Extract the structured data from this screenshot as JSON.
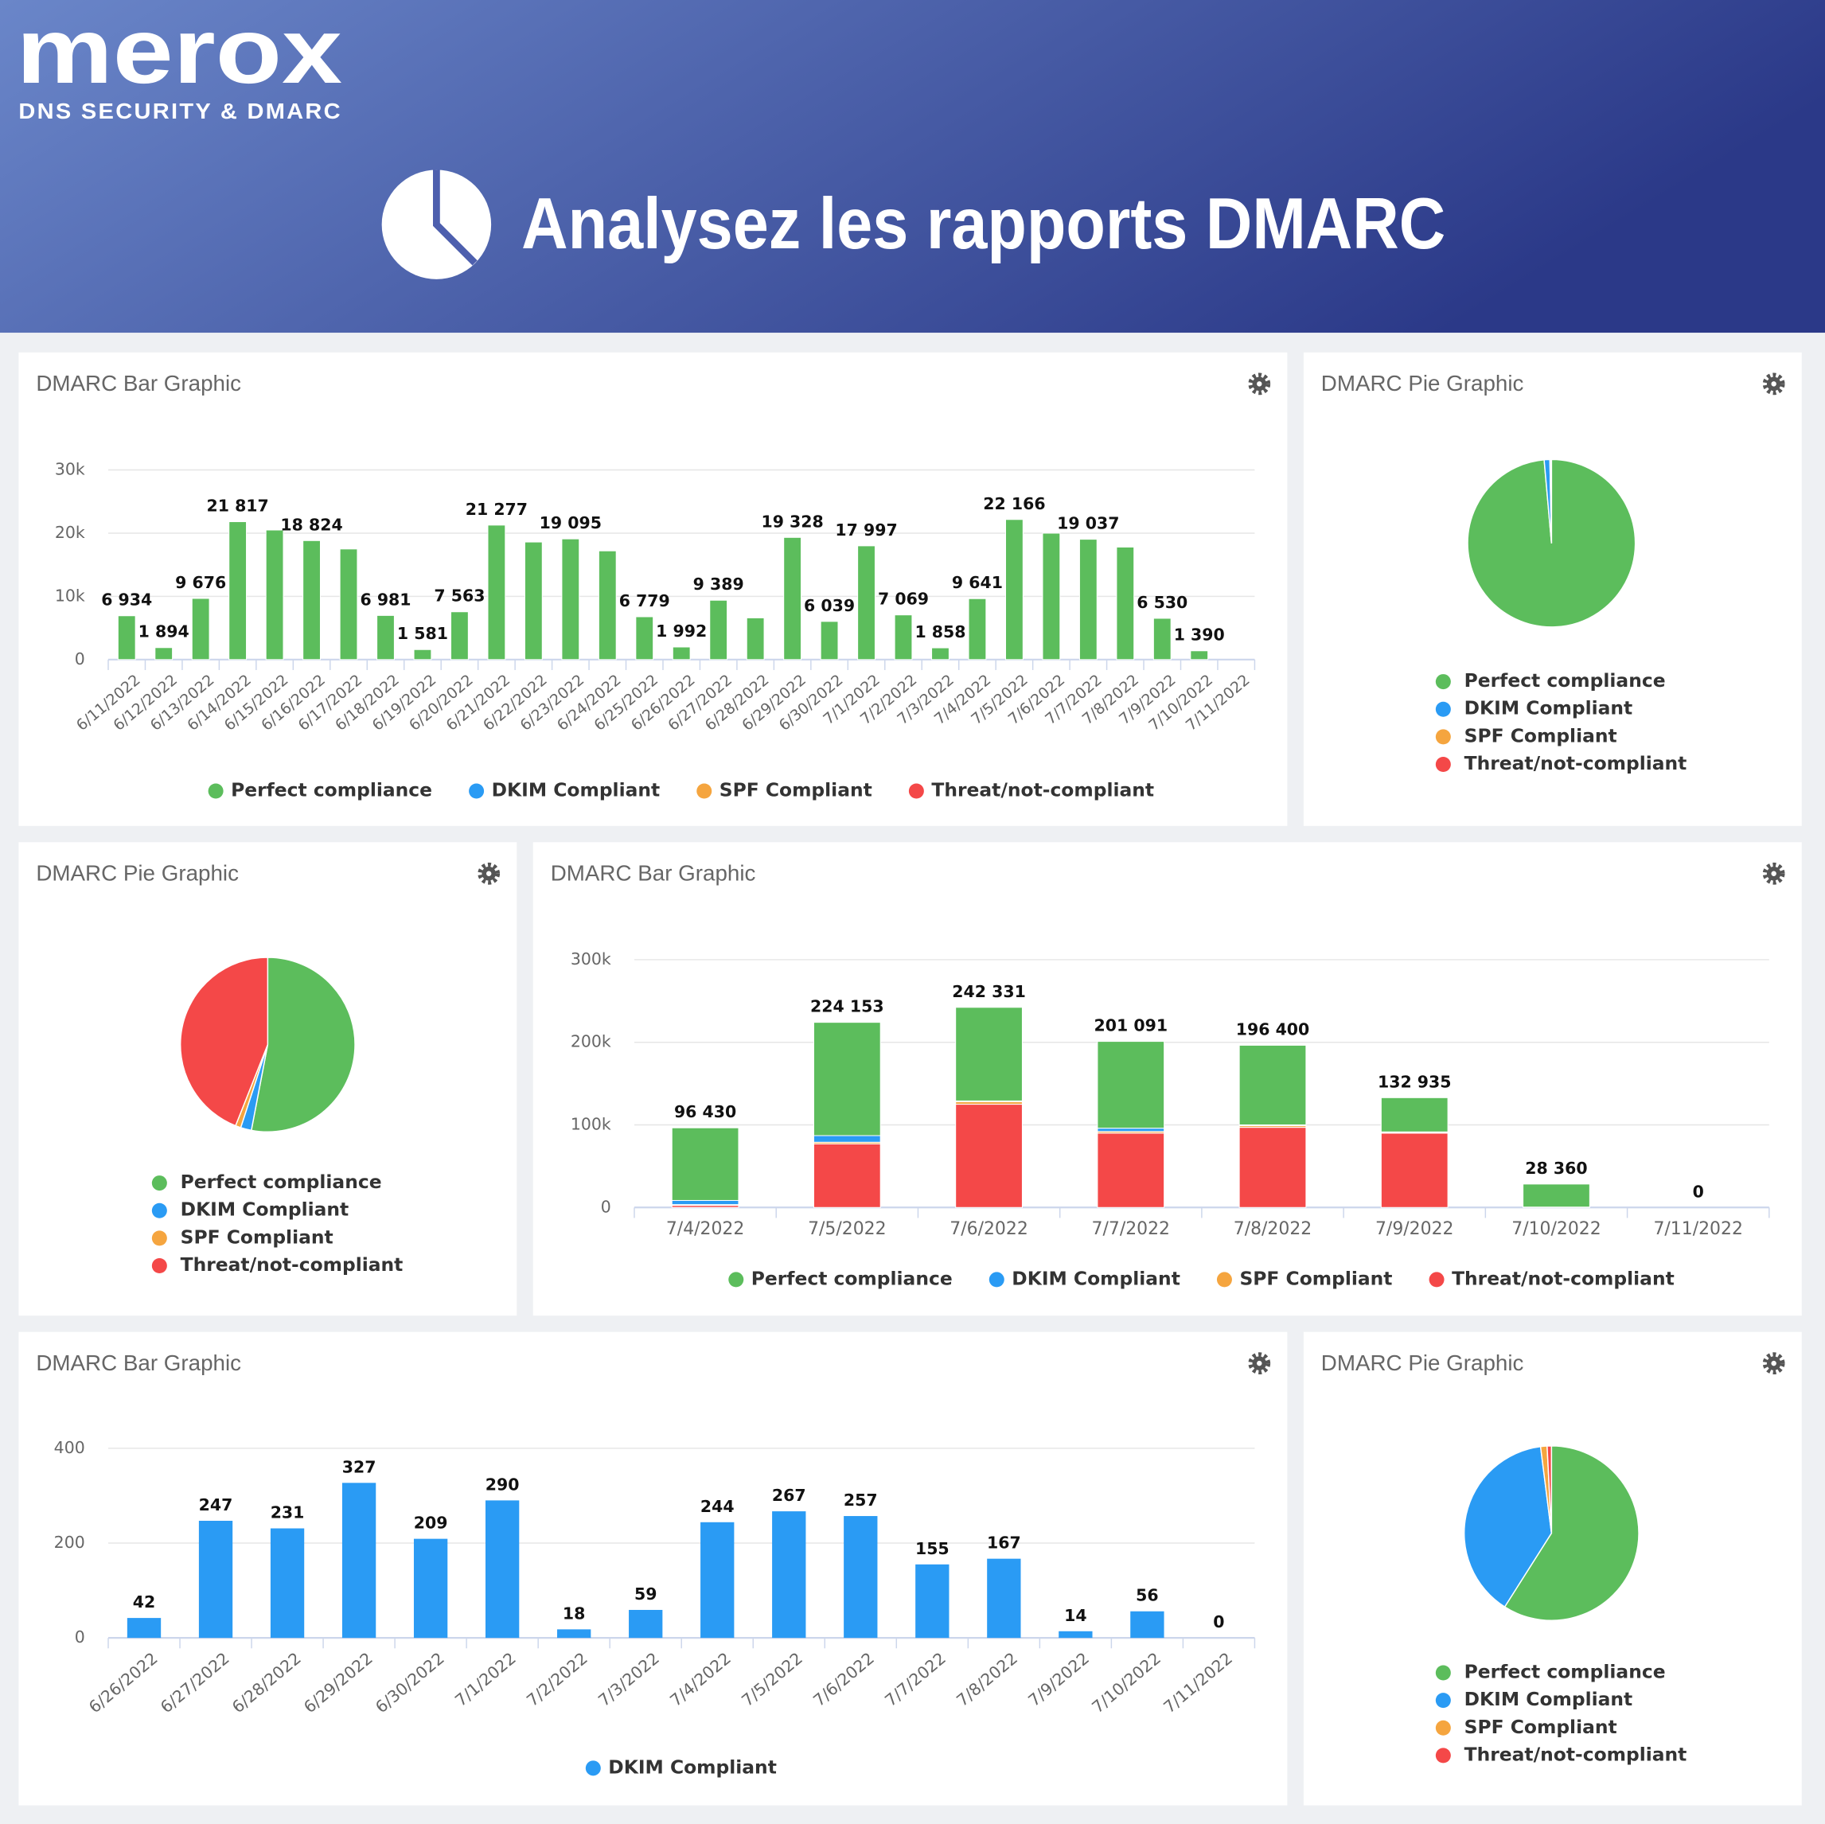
{
  "header": {
    "logo": "merox",
    "tagline": "DNS SECURITY & DMARC",
    "title": "Analysez les rapports DMARC"
  },
  "chart_data": [
    {
      "type": "bar",
      "title": "DMARC Bar Graphic",
      "categories": [
        "6/11/2022",
        "6/12/2022",
        "6/13/2022",
        "6/14/2022",
        "6/15/2022",
        "6/16/2022",
        "6/17/2022",
        "6/18/2022",
        "6/19/2022",
        "6/20/2022",
        "6/21/2022",
        "6/22/2022",
        "6/23/2022",
        "6/24/2022",
        "6/25/2022",
        "6/26/2022",
        "6/27/2022",
        "6/28/2022",
        "6/29/2022",
        "6/30/2022",
        "7/1/2022",
        "7/2/2022",
        "7/3/2022",
        "7/4/2022",
        "7/5/2022",
        "7/6/2022",
        "7/7/2022",
        "7/8/2022",
        "7/9/2022",
        "7/10/2022",
        "7/11/2022"
      ],
      "series": [
        {
          "name": "Perfect compliance",
          "color": "#5cbd5c",
          "values": [
            6934,
            1894,
            9676,
            21817,
            20500,
            18824,
            17500,
            6981,
            1581,
            7563,
            21277,
            18600,
            19095,
            17200,
            6779,
            1992,
            9389,
            6600,
            19328,
            6039,
            17997,
            7069,
            1858,
            9641,
            22166,
            20000,
            19037,
            17800,
            6530,
            1390,
            0
          ],
          "value_labels": [
            "6 934",
            "1 894",
            "9 676",
            "21 817",
            null,
            "18 824",
            null,
            "6 981",
            "1 581",
            "7 563",
            "21 277",
            null,
            "19 095",
            null,
            "6 779",
            "1 992",
            "9 389",
            null,
            "19 328",
            "6 039",
            "17 997",
            "7 069",
            "1 858",
            "9 641",
            "22 166",
            null,
            "19 037",
            null,
            "6 530",
            "1 390",
            null
          ]
        },
        {
          "name": "DKIM Compliant",
          "color": "#2a9bf4",
          "values": [
            0,
            0,
            0,
            0,
            0,
            0,
            0,
            0,
            0,
            0,
            0,
            0,
            0,
            0,
            0,
            0,
            0,
            0,
            0,
            0,
            0,
            0,
            0,
            0,
            0,
            0,
            0,
            0,
            0,
            0,
            0
          ]
        },
        {
          "name": "SPF Compliant",
          "color": "#f5a53f",
          "values": [
            0,
            0,
            0,
            0,
            0,
            0,
            0,
            0,
            0,
            0,
            0,
            0,
            0,
            0,
            0,
            0,
            0,
            0,
            0,
            0,
            0,
            0,
            0,
            0,
            0,
            0,
            0,
            0,
            0,
            0,
            0
          ]
        },
        {
          "name": "Threat/not-compliant",
          "color": "#f44848",
          "values": [
            0,
            0,
            0,
            0,
            0,
            0,
            0,
            0,
            0,
            0,
            0,
            0,
            0,
            0,
            0,
            0,
            0,
            0,
            0,
            0,
            0,
            0,
            0,
            0,
            0,
            0,
            0,
            0,
            0,
            0,
            0
          ]
        }
      ],
      "ylim": [
        0,
        30000
      ],
      "yticks": [
        0,
        {
          "value": 10000,
          "label": "10k"
        },
        {
          "value": 20000,
          "label": "20k"
        },
        {
          "value": 30000,
          "label": "30k"
        }
      ],
      "grid": true
    },
    {
      "type": "pie",
      "title": "DMARC Pie Graphic",
      "categories": [
        "Perfect compliance",
        "DKIM Compliant",
        "SPF Compliant",
        "Threat/not-compliant"
      ],
      "values": [
        98.6,
        1.1,
        0.1,
        0.2
      ],
      "colors": [
        "#5cbd5c",
        "#2a9bf4",
        "#f5a53f",
        "#f44848"
      ]
    },
    {
      "type": "pie",
      "title": "DMARC Pie Graphic",
      "categories": [
        "Perfect compliance",
        "DKIM Compliant",
        "SPF Compliant",
        "Threat/not-compliant"
      ],
      "values": [
        53,
        2,
        1,
        44
      ],
      "colors": [
        "#5cbd5c",
        "#2a9bf4",
        "#f5a53f",
        "#f44848"
      ]
    },
    {
      "type": "bar",
      "title": "DMARC Bar Graphic",
      "categories": [
        "7/4/2022",
        "7/5/2022",
        "7/6/2022",
        "7/7/2022",
        "7/8/2022",
        "7/9/2022",
        "7/10/2022",
        "7/11/2022"
      ],
      "series": [
        {
          "name": "Perfect compliance",
          "color": "#5cbd5c",
          "values": [
            87930,
            137153,
            113331,
            105091,
            96400,
            41435,
            27860,
            0
          ]
        },
        {
          "name": "DKIM Compliant",
          "color": "#2a9bf4",
          "values": [
            5000,
            8000,
            1000,
            4000,
            1000,
            500,
            500,
            0
          ]
        },
        {
          "name": "SPF Compliant",
          "color": "#f5a53f",
          "values": [
            1000,
            2000,
            3000,
            2000,
            2000,
            1000,
            0,
            0
          ]
        },
        {
          "name": "Threat/not-compliant",
          "color": "#f44848",
          "values": [
            2500,
            77000,
            125000,
            90000,
            97000,
            90000,
            0,
            0
          ]
        }
      ],
      "value_labels": [
        "96 430",
        "224 153",
        "242 331",
        "201 091",
        "196 400",
        "132 935",
        "28 360",
        "0"
      ],
      "ylim": [
        0,
        300000
      ],
      "yticks": [
        0,
        {
          "value": 100000,
          "label": "100k"
        },
        {
          "value": 200000,
          "label": "200k"
        },
        {
          "value": 300000,
          "label": "300k"
        }
      ],
      "grid": true
    },
    {
      "type": "bar",
      "title": "DMARC Bar Graphic",
      "categories": [
        "6/26/2022",
        "6/27/2022",
        "6/28/2022",
        "6/29/2022",
        "6/30/2022",
        "7/1/2022",
        "7/2/2022",
        "7/3/2022",
        "7/4/2022",
        "7/5/2022",
        "7/6/2022",
        "7/7/2022",
        "7/8/2022",
        "7/9/2022",
        "7/10/2022",
        "7/11/2022"
      ],
      "series": [
        {
          "name": "DKIM Compliant",
          "color": "#2a9bf4",
          "values": [
            42,
            247,
            231,
            327,
            209,
            290,
            18,
            59,
            244,
            267,
            257,
            155,
            167,
            14,
            56,
            0
          ]
        }
      ],
      "ylim": [
        0,
        400
      ],
      "yticks": [
        0,
        200,
        400
      ],
      "grid": true
    },
    {
      "type": "pie",
      "title": "DMARC Pie Graphic",
      "categories": [
        "Perfect compliance",
        "DKIM Compliant",
        "SPF Compliant",
        "Threat/not-compliant"
      ],
      "values": [
        59,
        39,
        1.2,
        0.8
      ],
      "colors": [
        "#5cbd5c",
        "#2a9bf4",
        "#f5a53f",
        "#f44848"
      ]
    }
  ]
}
